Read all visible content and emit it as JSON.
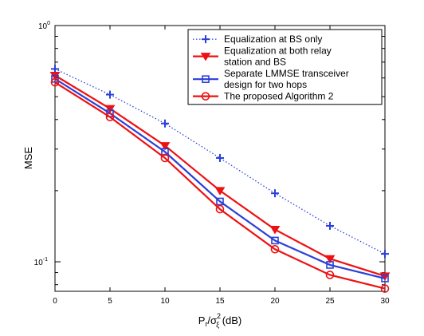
{
  "chart_data": {
    "type": "line",
    "xlabel": "",
    "xlabel_parts": {
      "base": "P",
      "sub1": "r",
      "slash": "/σ",
      "sup": "2",
      "sub2": "ξ",
      "unit": " (dB)"
    },
    "ylabel": "MSE",
    "xlim": [
      0,
      30
    ],
    "ylim": [
      0.075,
      1
    ],
    "yscale": "log",
    "x_ticks": [
      0,
      5,
      10,
      15,
      20,
      25,
      30
    ],
    "y_ticks": [
      {
        "value": 1,
        "base": "10",
        "exp": "0"
      },
      {
        "value": 0.1,
        "base": "10",
        "exp": "-1"
      }
    ],
    "grid": false,
    "legend_position": "top-right",
    "x": [
      0,
      5,
      10,
      15,
      20,
      25,
      30
    ],
    "series": [
      {
        "name": "Equalization at BS only",
        "name_lines": [
          "Equalization at BS only"
        ],
        "values": [
          0.655,
          0.51,
          0.385,
          0.275,
          0.195,
          0.142,
          0.108
        ],
        "color": "#2a3fd8",
        "marker": "plus",
        "dash": "dotted"
      },
      {
        "name": "Equalization at both relay station and BS",
        "name_lines": [
          "Equalization at both relay",
          "station and BS"
        ],
        "values": [
          0.615,
          0.445,
          0.31,
          0.2,
          0.137,
          0.103,
          0.087
        ],
        "color": "#ee1111",
        "marker": "triangle-down",
        "dash": "solid"
      },
      {
        "name": "Separate LMMSE transceiver design for two hops",
        "name_lines": [
          "Separate LMMSE transceiver",
          "design for two hops"
        ],
        "values": [
          0.595,
          0.425,
          0.292,
          0.18,
          0.123,
          0.097,
          0.085
        ],
        "color": "#2a3fd8",
        "marker": "square",
        "dash": "solid"
      },
      {
        "name": "The proposed Algorithm 2",
        "name_lines": [
          "The proposed Algorithm 2"
        ],
        "values": [
          0.575,
          0.41,
          0.275,
          0.167,
          0.113,
          0.088,
          0.077
        ],
        "color": "#ee1111",
        "marker": "circle",
        "dash": "solid"
      }
    ]
  }
}
